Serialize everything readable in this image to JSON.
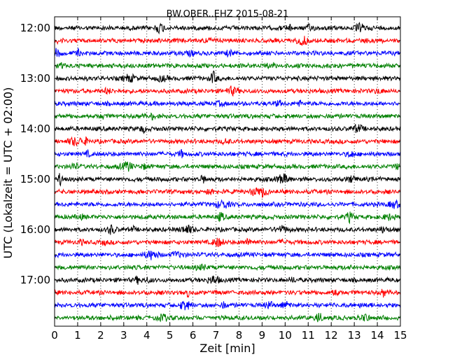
{
  "chart_data": {
    "type": "line",
    "title": "BW.OBER..EHZ 2015-08-21",
    "xlabel": "Zeit  [min]",
    "ylabel": "UTC (Lokalzeit = UTC + 02:00)",
    "xlim": [
      0,
      15
    ],
    "x_ticks": [
      "0",
      "1",
      "2",
      "3",
      "4",
      "5",
      "6",
      "7",
      "8",
      "9",
      "10",
      "11",
      "12",
      "13",
      "14",
      "15"
    ],
    "y_ticks": [
      "12:00",
      "13:00",
      "14:00",
      "15:00",
      "16:00",
      "17:00"
    ],
    "x_grid": "dotted",
    "trace_minutes": 15,
    "trace_start_times": [
      "12:00",
      "12:15",
      "12:30",
      "12:45",
      "13:00",
      "13:15",
      "13:30",
      "13:45",
      "14:00",
      "14:15",
      "14:30",
      "14:45",
      "15:00",
      "15:15",
      "15:30",
      "15:45",
      "16:00",
      "16:15",
      "16:30",
      "16:45",
      "17:00",
      "17:15",
      "17:30",
      "17:45"
    ],
    "colors": [
      "#000000",
      "#ff0000",
      "#0000ff",
      "#008000"
    ]
  }
}
